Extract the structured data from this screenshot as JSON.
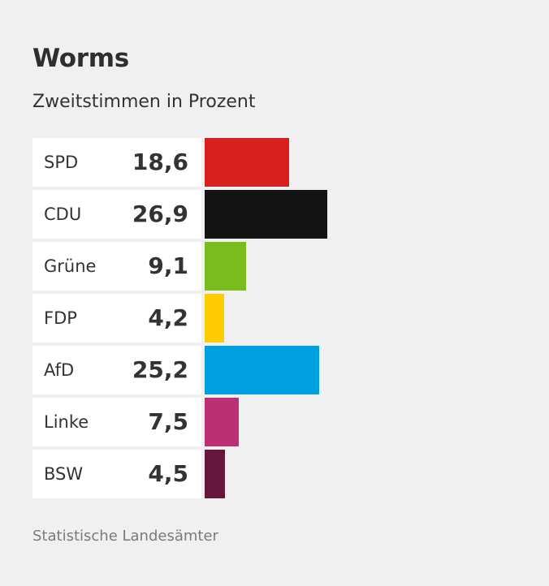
{
  "header": {
    "title": "Worms",
    "subtitle": "Zweitstimmen in Prozent"
  },
  "source": "Statistische Landesämter",
  "chart_data": {
    "type": "bar",
    "orientation": "horizontal",
    "title": "Worms",
    "subtitle": "Zweitstimmen in Prozent",
    "xlabel": "",
    "ylabel": "",
    "unit": "Prozent",
    "grid": false,
    "legend": "none",
    "xlim": [
      0,
      30
    ],
    "categories": [
      "SPD",
      "CDU",
      "Grüne",
      "FDP",
      "AfD",
      "Linke",
      "BSW"
    ],
    "values": [
      18.6,
      26.9,
      9.1,
      4.2,
      25.2,
      7.5,
      4.5
    ],
    "value_labels": [
      "18,6",
      "26,9",
      "9,1",
      "4,2",
      "25,2",
      "7,5",
      "4,5"
    ],
    "colors": [
      "#d7201f",
      "#131313",
      "#7abc1d",
      "#ffcb00",
      "#009fe0",
      "#bb2f73",
      "#65173e"
    ],
    "source": "Statistische Landesämter"
  }
}
